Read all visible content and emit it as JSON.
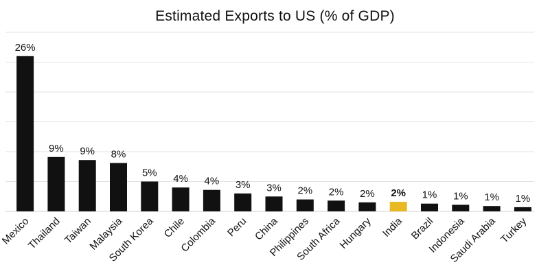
{
  "chart_data": {
    "type": "bar",
    "title": "Estimated Exports to US (% of GDP)",
    "categories": [
      "Mexico",
      "Thailand",
      "Taiwan",
      "Malaysia",
      "South Korea",
      "Chile",
      "Colombia",
      "Peru",
      "China",
      "Philippines",
      "South Africa",
      "Hungary",
      "India",
      "Brazil",
      "Indonesia",
      "Saudi Arabia",
      "Turkey"
    ],
    "values": [
      26,
      9,
      9,
      8,
      5,
      4,
      4,
      3,
      3,
      2,
      2,
      2,
      2,
      1,
      1,
      1,
      1
    ],
    "bar_values": [
      26.0,
      9.1,
      8.6,
      8.1,
      5.0,
      4.0,
      3.6,
      3.0,
      2.5,
      2.0,
      1.8,
      1.5,
      1.6,
      1.3,
      1.1,
      0.9,
      0.7
    ],
    "labels": [
      "26%",
      "9%",
      "9%",
      "8%",
      "5%",
      "4%",
      "4%",
      "3%",
      "3%",
      "2%",
      "2%",
      "2%",
      "2%",
      "1%",
      "1%",
      "1%",
      "1%"
    ],
    "highlight": "India",
    "ylim": [
      0,
      30
    ],
    "ygrid_step": 5,
    "grid": true,
    "colors": {
      "bar": "#111111",
      "highlight": "#e8b923",
      "grid": "#e2e2e2"
    }
  }
}
